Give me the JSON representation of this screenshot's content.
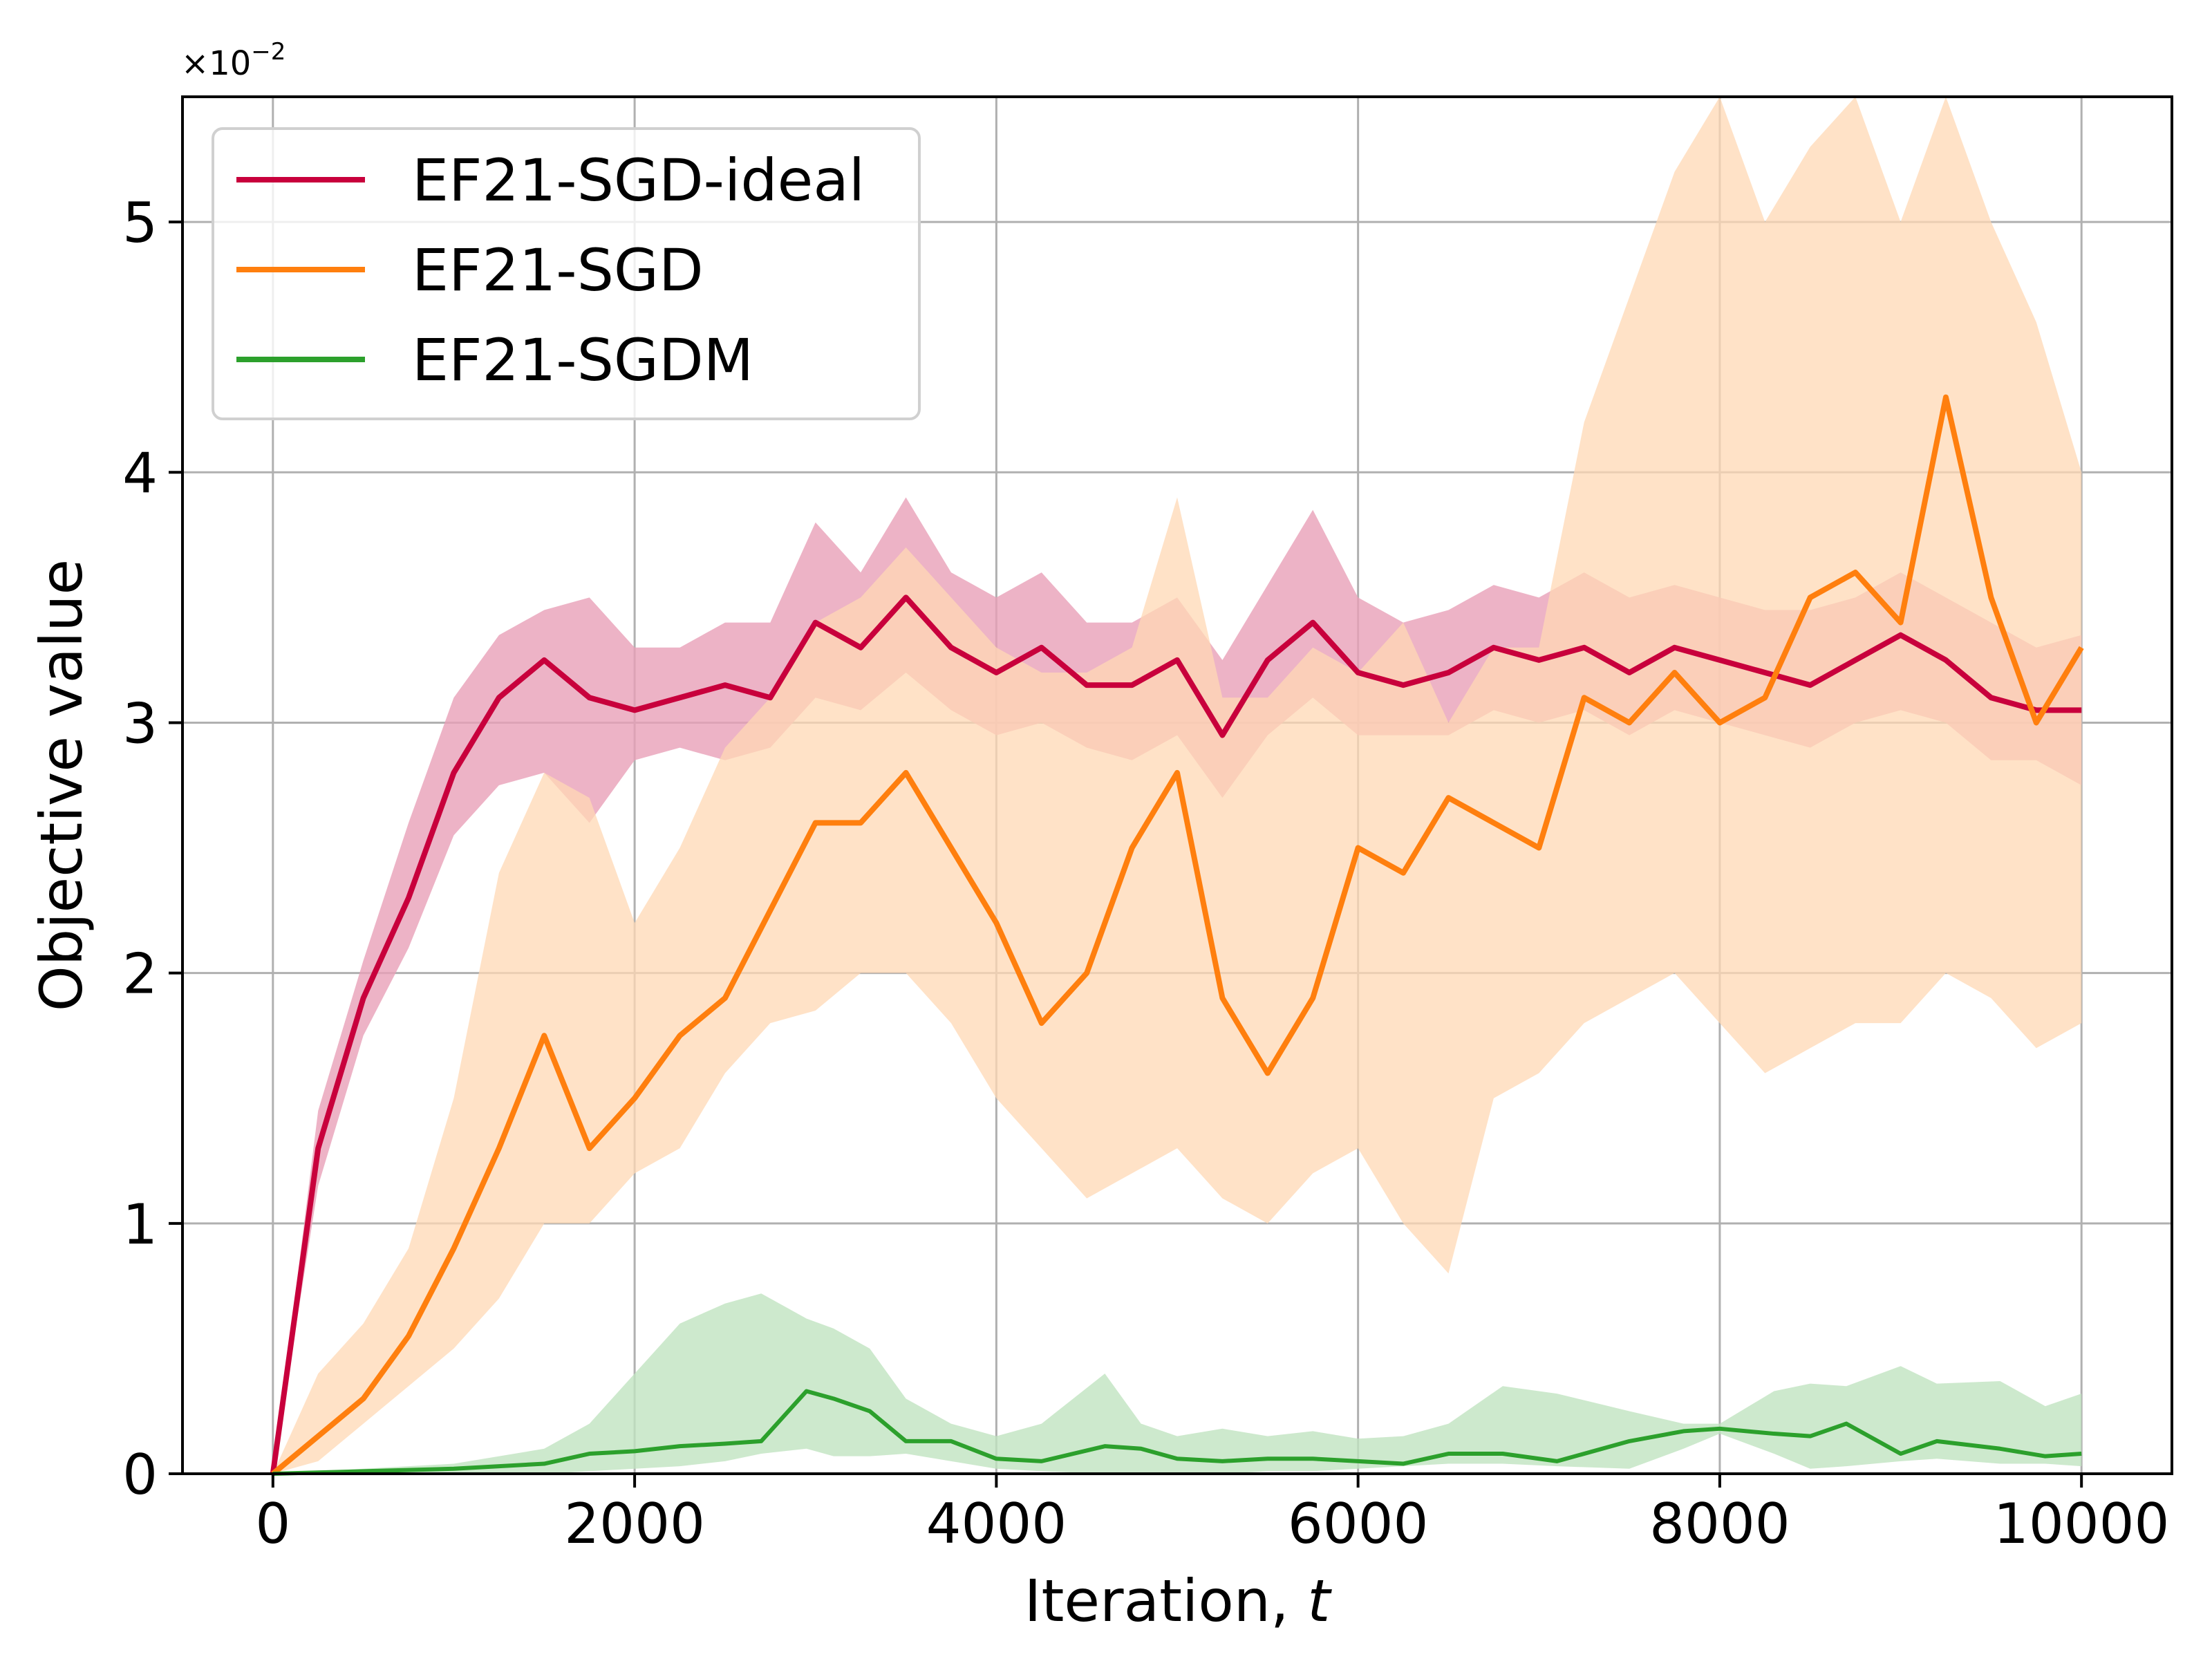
{
  "chart_data": {
    "type": "line",
    "title": "",
    "xlabel": "Iteration, ",
    "xlabel_italic": "t",
    "ylabel": "Objective value",
    "y_multiplier": "×10",
    "y_multiplier_exp": "−2",
    "xlim": [
      -500,
      10500
    ],
    "ylim": [
      0,
      5.5
    ],
    "xticks": [
      0,
      2000,
      4000,
      6000,
      8000,
      10000
    ],
    "xtick_labels": [
      "0",
      "2000",
      "4000",
      "6000",
      "8000",
      "10000"
    ],
    "yticks": [
      0,
      1,
      2,
      3,
      4,
      5
    ],
    "ytick_labels": [
      "0",
      "1",
      "2",
      "3",
      "4",
      "5"
    ],
    "grid": true,
    "legend_position": "top-left",
    "series": [
      {
        "name": "EF21-SGD-ideal",
        "color": "#c8003c",
        "band_color": "#e8a0b8",
        "x": [
          0,
          250,
          500,
          750,
          1000,
          1250,
          1500,
          1750,
          2000,
          2250,
          2500,
          2750,
          3000,
          3250,
          3500,
          3750,
          4000,
          4250,
          4500,
          4750,
          5000,
          5250,
          5500,
          5750,
          6000,
          6250,
          6500,
          6750,
          7000,
          7250,
          7500,
          7750,
          8000,
          8250,
          8500,
          8750,
          9000,
          9250,
          9500,
          9750,
          10000
        ],
        "mean": [
          0,
          1.3,
          1.9,
          2.3,
          2.8,
          3.1,
          3.25,
          3.1,
          3.05,
          3.1,
          3.15,
          3.1,
          3.4,
          3.3,
          3.5,
          3.3,
          3.2,
          3.3,
          3.15,
          3.15,
          3.25,
          2.95,
          3.25,
          3.4,
          3.2,
          3.15,
          3.2,
          3.3,
          3.25,
          3.3,
          3.2,
          3.3,
          3.25,
          3.2,
          3.15,
          3.25,
          3.35,
          3.25,
          3.1,
          3.05,
          3.05
        ],
        "lower": [
          0,
          1.15,
          1.75,
          2.1,
          2.55,
          2.75,
          2.8,
          2.6,
          2.85,
          2.9,
          2.85,
          2.9,
          3.1,
          3.05,
          3.2,
          3.05,
          2.95,
          3.0,
          2.9,
          2.85,
          2.95,
          2.7,
          2.95,
          3.1,
          2.95,
          2.95,
          2.95,
          3.05,
          3.0,
          3.05,
          2.95,
          3.05,
          3.0,
          2.95,
          2.9,
          3.0,
          3.05,
          3.0,
          2.85,
          2.85,
          2.75
        ],
        "upper": [
          0,
          1.45,
          2.05,
          2.6,
          3.1,
          3.35,
          3.45,
          3.5,
          3.3,
          3.3,
          3.4,
          3.4,
          3.8,
          3.6,
          3.9,
          3.6,
          3.5,
          3.6,
          3.4,
          3.4,
          3.5,
          3.25,
          3.55,
          3.85,
          3.5,
          3.4,
          3.45,
          3.55,
          3.5,
          3.6,
          3.5,
          3.55,
          3.5,
          3.45,
          3.45,
          3.5,
          3.6,
          3.5,
          3.4,
          3.3,
          3.35
        ]
      },
      {
        "name": "EF21-SGD",
        "color": "#ff7f0e",
        "band_color": "#ffd8b4",
        "x": [
          0,
          250,
          500,
          750,
          1000,
          1250,
          1500,
          1750,
          2000,
          2250,
          2500,
          2750,
          3000,
          3250,
          3500,
          3750,
          4000,
          4250,
          4500,
          4750,
          5000,
          5250,
          5500,
          5750,
          6000,
          6250,
          6500,
          6750,
          7000,
          7250,
          7500,
          7750,
          8000,
          8250,
          8500,
          8750,
          9000,
          9250,
          9500,
          9750,
          10000
        ],
        "mean": [
          0,
          0.15,
          0.3,
          0.55,
          0.9,
          1.3,
          1.75,
          1.3,
          1.5,
          1.75,
          1.9,
          2.25,
          2.6,
          2.6,
          2.8,
          2.5,
          2.2,
          1.8,
          2.0,
          2.5,
          2.8,
          1.9,
          1.6,
          1.9,
          2.5,
          2.4,
          2.7,
          2.6,
          2.5,
          3.1,
          3.0,
          3.2,
          3.0,
          3.1,
          3.5,
          3.6,
          3.4,
          4.3,
          3.5,
          3.0,
          3.3
        ],
        "lower": [
          0,
          0.05,
          0.2,
          0.35,
          0.5,
          0.7,
          1.0,
          1.0,
          1.2,
          1.3,
          1.6,
          1.8,
          1.85,
          2.0,
          2.0,
          1.8,
          1.5,
          1.3,
          1.1,
          1.2,
          1.3,
          1.1,
          1.0,
          1.2,
          1.3,
          1.0,
          0.8,
          1.5,
          1.6,
          1.8,
          1.9,
          2.0,
          1.8,
          1.6,
          1.7,
          1.8,
          1.8,
          2.0,
          1.9,
          1.7,
          1.8
        ],
        "upper": [
          0,
          0.4,
          0.6,
          0.9,
          1.5,
          2.4,
          2.8,
          2.7,
          2.2,
          2.5,
          2.9,
          3.1,
          3.4,
          3.5,
          3.7,
          3.5,
          3.3,
          3.2,
          3.2,
          3.3,
          3.9,
          3.1,
          3.1,
          3.3,
          3.2,
          3.4,
          3.0,
          3.3,
          3.3,
          4.2,
          4.7,
          5.2,
          5.5,
          5.0,
          5.3,
          5.5,
          5.0,
          5.5,
          5.0,
          4.6,
          4.0
        ]
      },
      {
        "name": "EF21-SGDM",
        "color": "#2ca02c",
        "band_color": "#c0e3c0",
        "x": [
          0,
          500,
          1000,
          1500,
          1750,
          2000,
          2250,
          2500,
          2700,
          2950,
          3100,
          3300,
          3500,
          3750,
          4000,
          4250,
          4600,
          4800,
          5000,
          5250,
          5500,
          5750,
          6000,
          6250,
          6500,
          6800,
          7100,
          7500,
          7800,
          8000,
          8300,
          8500,
          8700,
          9000,
          9200,
          9550,
          9800,
          10000
        ],
        "mean": [
          0,
          0.01,
          0.02,
          0.04,
          0.08,
          0.09,
          0.11,
          0.12,
          0.13,
          0.33,
          0.3,
          0.25,
          0.13,
          0.13,
          0.06,
          0.05,
          0.11,
          0.1,
          0.06,
          0.05,
          0.06,
          0.06,
          0.05,
          0.04,
          0.08,
          0.08,
          0.05,
          0.13,
          0.17,
          0.18,
          0.16,
          0.15,
          0.2,
          0.08,
          0.13,
          0.1,
          0.07,
          0.08
        ],
        "lower": [
          0,
          0,
          0,
          0,
          0.01,
          0.02,
          0.03,
          0.05,
          0.08,
          0.1,
          0.07,
          0.07,
          0.08,
          0.05,
          0.02,
          0.01,
          0,
          0,
          0,
          0,
          0.01,
          0.01,
          0.02,
          0.03,
          0.04,
          0.04,
          0.03,
          0.02,
          0.1,
          0.16,
          0.08,
          0.02,
          0.03,
          0.05,
          0.06,
          0.04,
          0.04,
          0.03
        ],
        "upper": [
          0,
          0.02,
          0.04,
          0.1,
          0.2,
          0.4,
          0.6,
          0.68,
          0.72,
          0.62,
          0.58,
          0.5,
          0.3,
          0.2,
          0.15,
          0.2,
          0.4,
          0.2,
          0.15,
          0.18,
          0.15,
          0.17,
          0.14,
          0.15,
          0.2,
          0.35,
          0.32,
          0.25,
          0.2,
          0.2,
          0.33,
          0.36,
          0.35,
          0.43,
          0.36,
          0.37,
          0.27,
          0.32
        ]
      }
    ]
  }
}
